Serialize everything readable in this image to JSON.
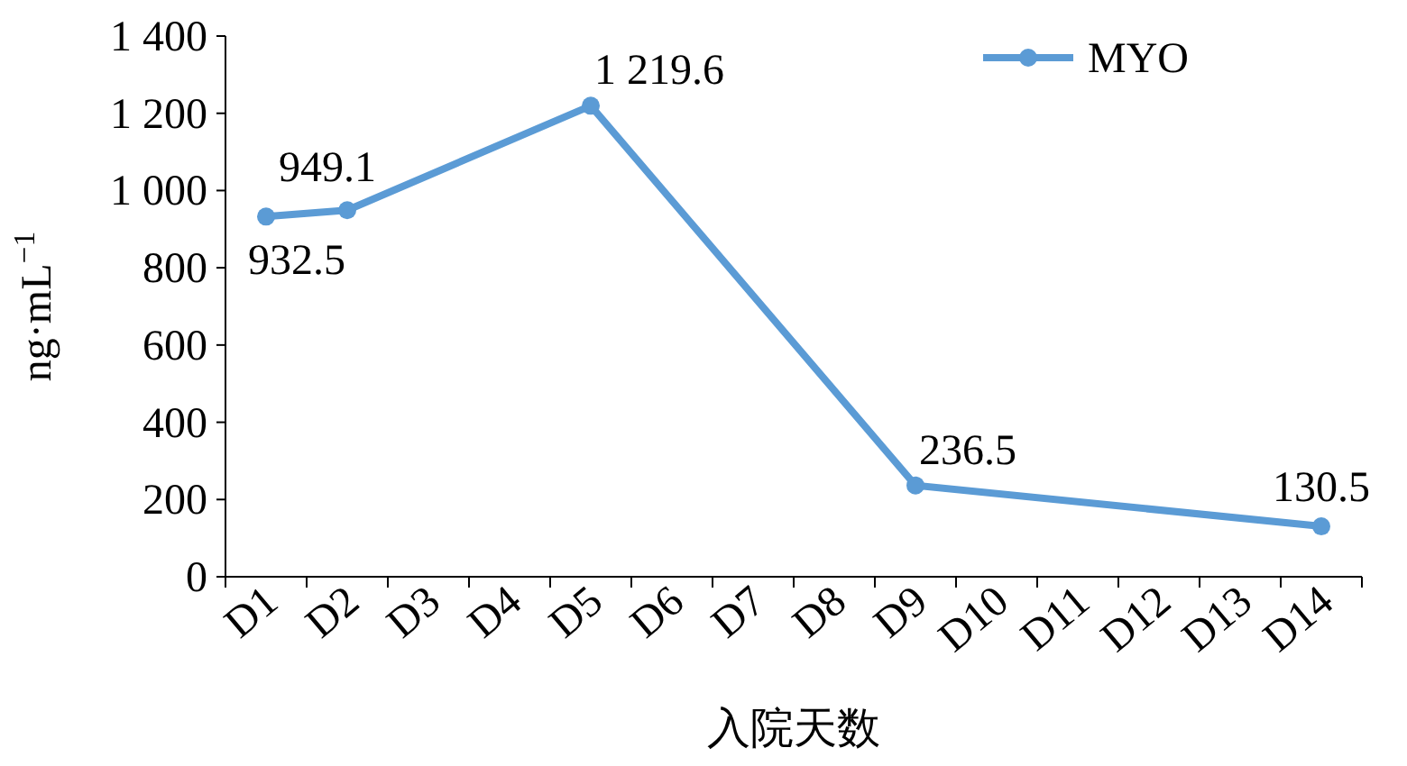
{
  "chart_data": {
    "type": "line",
    "categories": [
      "D1",
      "D2",
      "D3",
      "D4",
      "D5",
      "D6",
      "D7",
      "D8",
      "D9",
      "D10",
      "D11",
      "D12",
      "D13",
      "D14"
    ],
    "series": [
      {
        "name": "MYO",
        "color": "#5b9bd5",
        "x": [
          "D1",
          "D2",
          "D5",
          "D9",
          "D14"
        ],
        "values": [
          932.5,
          949.1,
          1219.6,
          236.5,
          130.5
        ]
      }
    ],
    "ylim": [
      0,
      1400
    ],
    "yticks": [
      0,
      200,
      400,
      600,
      800,
      {
        "value": 1000,
        "label": "1 000"
      },
      {
        "value": 1200,
        "label": "1 200"
      },
      {
        "value": 1400,
        "label": "1 400"
      }
    ],
    "ylabel": "ng·mL$^{−1}$",
    "xlabel": "入院天数",
    "data_labels": true,
    "value_labels": [
      "932.5",
      "949.1",
      "1 219.6",
      "236.5",
      "130.5"
    ],
    "legend": "top right",
    "marker": "circle",
    "line_style": "solid",
    "grid": false
  }
}
